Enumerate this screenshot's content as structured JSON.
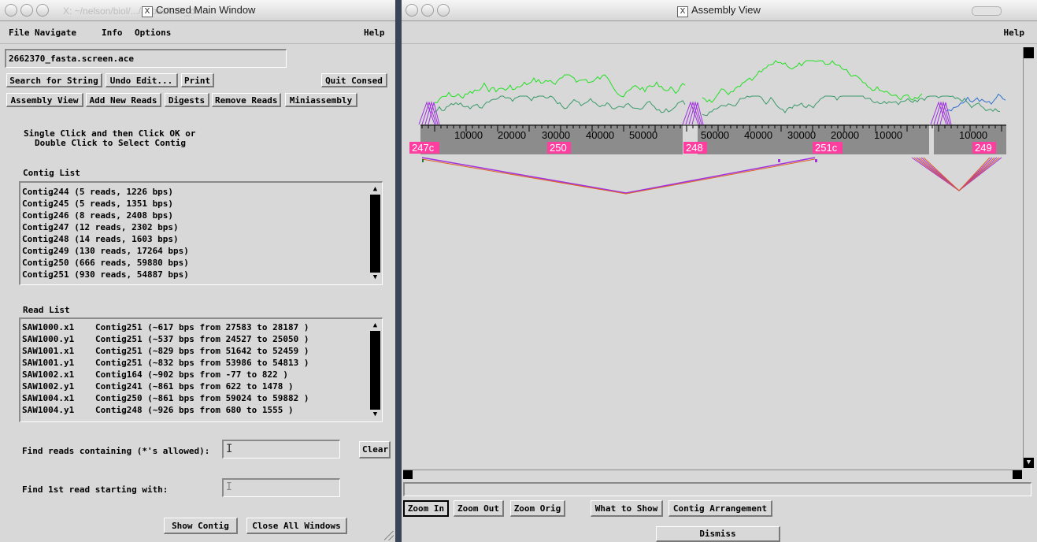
{
  "main_window": {
    "title": "Consed Main Window",
    "ghost_title": "X: ~/nelson/biol/.../abbas/edit_dir",
    "menus": [
      "File",
      "Navigate",
      "Info",
      "Options"
    ],
    "help": "Help",
    "ace_file": "2662370_fasta.screen.ace",
    "buttons_row1": [
      "Search for String",
      "Undo Edit...",
      "Print"
    ],
    "quit": "Quit Consed",
    "buttons_row2": [
      "Assembly View",
      "Add New Reads",
      "Digests",
      "Remove Reads",
      "Miniassembly"
    ],
    "instruction_line1": "Single Click and then Click OK or",
    "instruction_line2": "Double Click to Select Contig",
    "contig_list_label": "Contig List",
    "contigs": [
      "Contig244 (5 reads, 1226 bps)",
      "Contig245 (5 reads, 1351 bps)",
      "Contig246 (8 reads, 2408 bps)",
      "Contig247 (12 reads, 2302 bps)",
      "Contig248 (14 reads, 1603 bps)",
      "Contig249 (130 reads, 17264 bps)",
      "Contig250 (666 reads, 59880 bps)",
      "Contig251 (930 reads, 54887 bps)"
    ],
    "read_list_label": "Read List",
    "reads": [
      {
        "name": "SAW1000.x1",
        "info": "Contig251 (~617 bps from 27583 to 28187 )"
      },
      {
        "name": "SAW1000.y1",
        "info": "Contig251 (~537 bps from 24527 to 25050 )"
      },
      {
        "name": "SAW1001.x1",
        "info": "Contig251 (~829 bps from 51642 to 52459 )"
      },
      {
        "name": "SAW1001.y1",
        "info": "Contig251 (~832 bps from 53986 to 54813 )"
      },
      {
        "name": "SAW1002.x1",
        "info": "Contig164 (~902 bps from -77 to 822 )"
      },
      {
        "name": "SAW1002.y1",
        "info": "Contig241 (~861 bps from 622 to 1478 )"
      },
      {
        "name": "SAW1004.x1",
        "info": "Contig250 (~861 bps from 59024 to 59882 )"
      },
      {
        "name": "SAW1004.y1",
        "info": "Contig248 (~926 bps from 680 to 1555 )"
      }
    ],
    "find_reads_label": "Find reads containing (*'s allowed):",
    "find_reads_value": "",
    "clear": "Clear",
    "find_first_label": "Find 1st read starting with:",
    "find_first_value": "",
    "show_contig": "Show Contig",
    "close_all": "Close All Windows"
  },
  "assembly_window": {
    "title": "Assembly View",
    "help": "Help",
    "tick_labels_a": [
      "10000",
      "20000",
      "30000",
      "40000",
      "50000"
    ],
    "tick_labels_b": [
      "50000",
      "40000",
      "30000",
      "20000",
      "10000"
    ],
    "tick_labels_c": [
      "10000"
    ],
    "contig_tags": [
      "247c",
      "250",
      "248",
      "251c",
      "249"
    ],
    "buttons": [
      "Zoom In",
      "Zoom Out",
      "Zoom Orig",
      "What to Show",
      "Contig Arrangement"
    ],
    "dismiss": "Dismiss",
    "colors": {
      "coverage_bright": "#22e022",
      "coverage_dark": "#3a9a6a",
      "contig_bar": "#8c8c8c",
      "tag": "#ff3fa0",
      "link_purple": "#a030e0",
      "link_orange": "#e06020",
      "link_blue": "#3070d0"
    }
  }
}
